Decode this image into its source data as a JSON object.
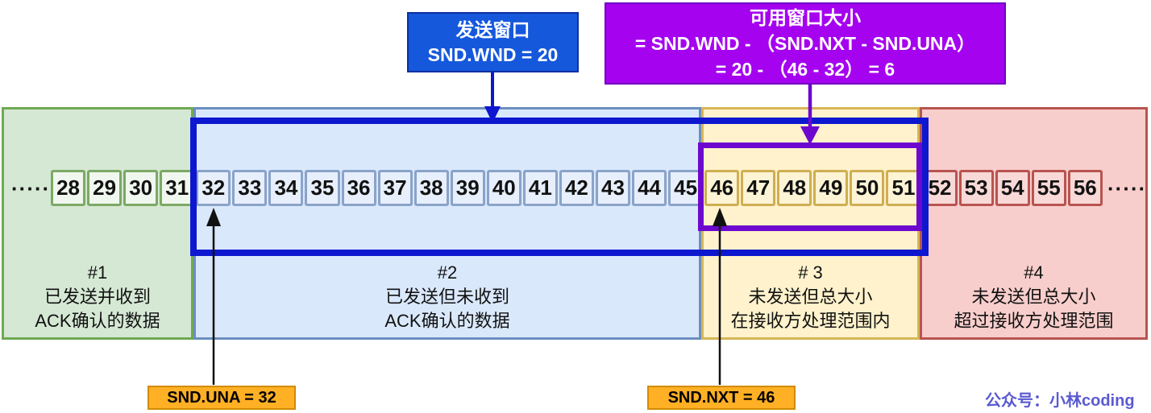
{
  "annotations": {
    "send_window": {
      "title": "发送窗口",
      "value": "SND.WND = 20"
    },
    "available_window": {
      "title": "可用窗口大小",
      "formula": "= SND.WND - （SND.NXT - SND.UNA）",
      "result": "= 20 - （46 - 32） = 6"
    },
    "snd_una": "SND.UNA = 32",
    "snd_nxt": "SND.NXT = 46"
  },
  "regions": [
    {
      "number": "#1",
      "line1": "已发送并收到",
      "line2": "ACK确认的数据",
      "fill": "#d5e8d4",
      "border": "#6fa953",
      "color_key": "g",
      "cells": [
        28,
        29,
        30,
        31
      ]
    },
    {
      "number": "#2",
      "line1": "已发送但未收到",
      "line2": "ACK确认的数据",
      "fill": "#dae8fc",
      "border": "#6c8ebf",
      "color_key": "b",
      "cells": [
        32,
        33,
        34,
        35,
        36,
        37,
        38,
        39,
        40,
        41,
        42,
        43,
        44,
        45
      ]
    },
    {
      "number": "# 3",
      "line1": "未发送但总大小",
      "line2": "在接收方处理范围内",
      "fill": "#fff2cc",
      "border": "#d6b656",
      "color_key": "y",
      "cells": [
        46,
        47,
        48,
        49,
        50,
        51
      ]
    },
    {
      "number": "#4",
      "line1": "未发送但总大小",
      "line2": "超过接收方处理范围",
      "fill": "#f8cecc",
      "border": "#b85450",
      "color_key": "r",
      "cells": [
        52,
        53,
        54,
        55,
        56
      ]
    }
  ],
  "ellipsis_left": "·····",
  "ellipsis_right": "·····",
  "watermark": "公众号：小林coding",
  "colors": {
    "send_window_box_fill": "#1558dc",
    "available_window_box_fill": "#a503f0",
    "send_window_frame": "#0d17cf",
    "available_window_frame": "#6d08cf",
    "pointer_label_fill": "#ffb024",
    "pointer_label_border": "#d18b00",
    "watermark_text": "#5a5ad2"
  }
}
